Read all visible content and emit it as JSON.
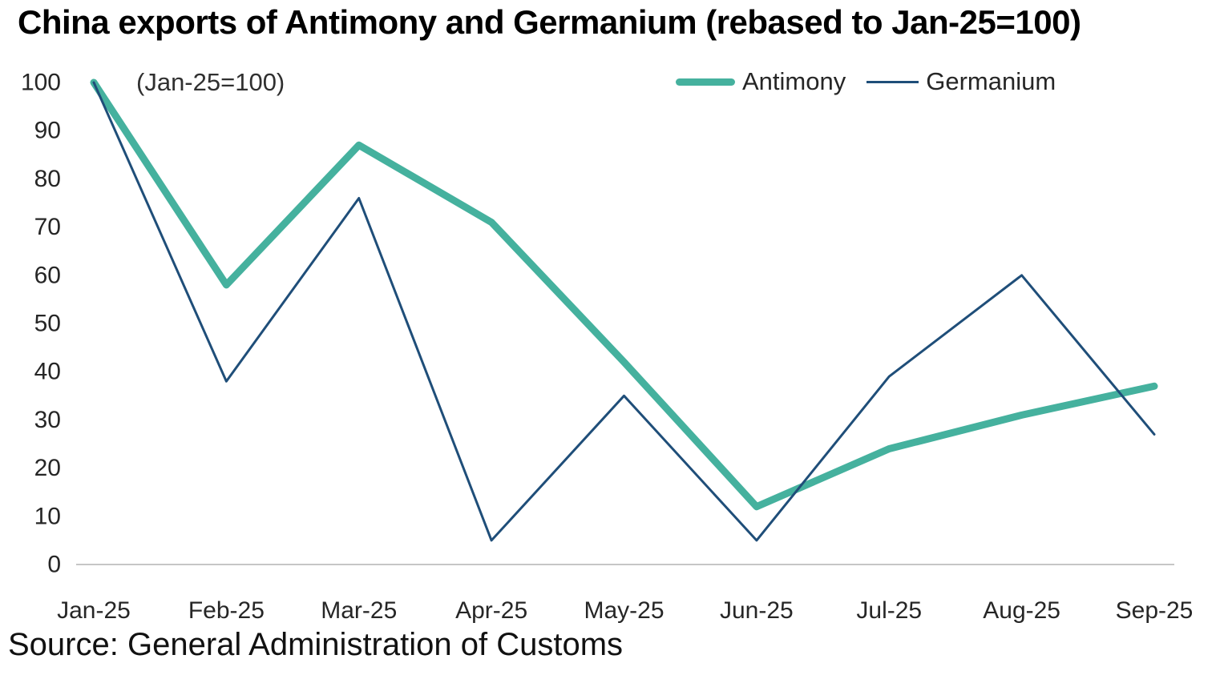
{
  "title": "China exports of Antimony and Germanium (rebased to Jan-25=100)",
  "annotation": "(Jan-25=100)",
  "source": "Source: General Administration of Customs",
  "chart_data": {
    "type": "line",
    "title": "China exports of Antimony and Germanium (rebased to Jan-25=100)",
    "xlabel": "",
    "ylabel": "",
    "categories": [
      "Jan-25",
      "Feb-25",
      "Mar-25",
      "Apr-25",
      "May-25",
      "Jun-25",
      "Jul-25",
      "Aug-25",
      "Sep-25"
    ],
    "series": [
      {
        "name": "Antimony",
        "color": "#45B19E",
        "stroke_width": 9,
        "values": [
          100,
          58,
          87,
          71,
          42,
          12,
          24,
          31,
          37
        ]
      },
      {
        "name": "Germanium",
        "color": "#1F4E79",
        "stroke_width": 3,
        "values": [
          100,
          38,
          76,
          5,
          35,
          5,
          39,
          60,
          27
        ]
      }
    ],
    "ylim": [
      0,
      100
    ],
    "yticks": [
      0,
      10,
      20,
      30,
      40,
      50,
      60,
      70,
      80,
      90,
      100
    ],
    "grid": false,
    "legend_position": "top-right",
    "axis_color": "#C6C6C6",
    "text_color": "#262626"
  }
}
